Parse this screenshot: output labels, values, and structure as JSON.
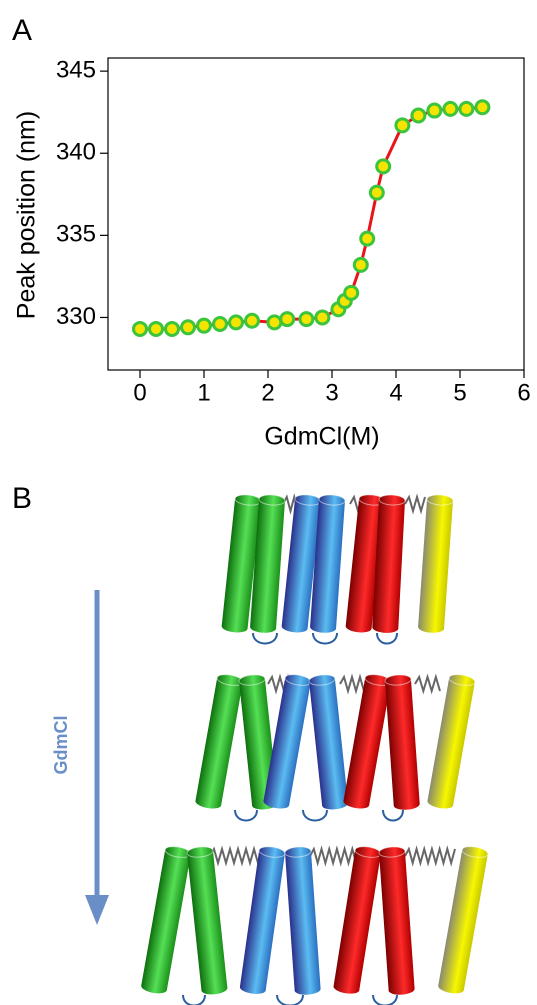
{
  "chart_data": {
    "type": "line",
    "panel": "A",
    "xlabel": "GdmCl(M)",
    "ylabel": "Peak position (nm)",
    "x": [
      0,
      0.25,
      0.5,
      0.75,
      1.0,
      1.25,
      1.5,
      1.75,
      2.1,
      2.3,
      2.6,
      2.85,
      3.1,
      3.2,
      3.3,
      3.45,
      3.55,
      3.7,
      3.8,
      4.1,
      4.35,
      4.6,
      4.85,
      5.1,
      5.35
    ],
    "series": [
      {
        "color": "#f5e400",
        "edge_color": "#3cc43c",
        "line_color": "#e8141a",
        "values": [
          329.3,
          329.3,
          329.3,
          329.4,
          329.5,
          329.6,
          329.7,
          329.8,
          329.7,
          329.9,
          329.9,
          330.0,
          330.5,
          331.0,
          331.5,
          333.2,
          334.8,
          337.6,
          339.2,
          341.7,
          342.3,
          342.6,
          342.7,
          342.7,
          342.8
        ]
      }
    ],
    "xlim": [
      -0.5,
      6
    ],
    "xticks": [
      0,
      1,
      2,
      3,
      4,
      5,
      6
    ],
    "ylim": [
      326.8,
      345.8
    ],
    "yticks": [
      330,
      335,
      340,
      345
    ]
  },
  "diagram": {
    "panel": "B",
    "arrow_label": "GdmCl"
  }
}
